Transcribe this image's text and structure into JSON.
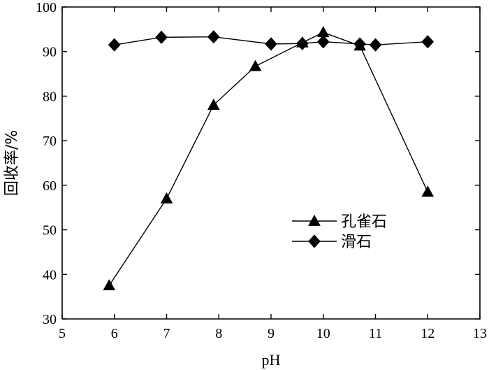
{
  "chart_data": {
    "type": "line",
    "xlabel": "pH",
    "ylabel": "回收率/%",
    "xlim": [
      5,
      13
    ],
    "ylim": [
      30,
      100
    ],
    "xticks": [
      5,
      6,
      7,
      8,
      9,
      10,
      11,
      12,
      13
    ],
    "yticks": [
      30,
      40,
      50,
      60,
      70,
      80,
      90,
      100
    ],
    "grid": false,
    "legend": "center-right",
    "series": [
      {
        "name": "孔雀石",
        "marker": "triangle",
        "x": [
          5.9,
          7.0,
          7.9,
          8.7,
          9.6,
          10.0,
          10.7,
          12.0
        ],
        "y": [
          37.5,
          57.0,
          78.0,
          86.7,
          92.0,
          94.3,
          91.3,
          58.5
        ]
      },
      {
        "name": "滑石",
        "marker": "diamond",
        "x": [
          6.0,
          6.9,
          7.9,
          9.0,
          9.6,
          10.0,
          10.7,
          11.0,
          12.0
        ],
        "y": [
          91.5,
          93.2,
          93.3,
          91.7,
          91.8,
          92.2,
          91.7,
          91.5,
          92.2
        ]
      }
    ]
  }
}
